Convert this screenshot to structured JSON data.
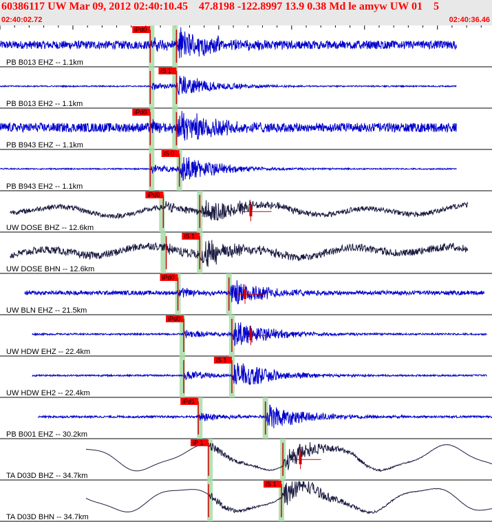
{
  "header": {
    "title": "60386117 UW Mar 09, 2012 02:40:10.45    47.8198 -122.8997 13.9 0.38 Md le amyw UW 01    5",
    "time_start": "02:40:02.72",
    "time_end": "02:40:36.46"
  },
  "colors": {
    "header_bg": "#e8e8e8",
    "title_text": "#ff0000",
    "trace_blue": "#0000cc",
    "trace_dark": "#1a1a40",
    "pick_box": "#ff0000",
    "window_band": "#a8dca8",
    "minute_tick": "#000000"
  },
  "chart_data": {
    "type": "line",
    "x_range_seconds": [
      0,
      33.74
    ],
    "traces": [
      {
        "label": "PB B013 EHZ -- 1.1km",
        "color": "#0000cc",
        "style": "hf",
        "start": 0.0,
        "end": 31.3,
        "p": 10.3,
        "s": 12.1,
        "pick_text": "iPd0",
        "pick_at": 10.3,
        "amp": 0.42,
        "noise": 0.2,
        "cursor": null,
        "bands": [
          10.4,
          12.0
        ]
      },
      {
        "label": "PB B013 EH2 -- 1.1km",
        "color": "#0000cc",
        "style": "hf",
        "start": 0.0,
        "end": 31.3,
        "p": 10.3,
        "s": 12.1,
        "pick_text": "iS 1",
        "pick_at": 12.1,
        "amp": 0.32,
        "noise": 0.03,
        "cursor": null,
        "bands": [
          10.4,
          12.0
        ]
      },
      {
        "label": "PB B943 EHZ -- 1.1km",
        "color": "#0000cc",
        "style": "hf",
        "start": 0.0,
        "end": 31.3,
        "p": 10.3,
        "s": 12.1,
        "pick_text": "iPd0",
        "pick_at": 10.3,
        "amp": 0.45,
        "noise": 0.22,
        "cursor": null,
        "bands": [
          10.4,
          12.0
        ]
      },
      {
        "label": "PB B943 EH2 -- 1.1km",
        "color": "#0000cc",
        "style": "hf",
        "start": 0.0,
        "end": 31.3,
        "p": 10.3,
        "s": 12.3,
        "pick_text": "iS 0",
        "pick_at": 12.3,
        "amp": 0.4,
        "noise": 0.03,
        "cursor": null,
        "bands": [
          10.4,
          12.3
        ]
      },
      {
        "label": "UW DOSE BHZ -- 12.6km",
        "color": "#1a1a40",
        "style": "lf",
        "start": 0.7,
        "end": 32.1,
        "p": 11.2,
        "s": 13.7,
        "pick_text": "iPd0",
        "pick_at": 11.2,
        "amp": 0.4,
        "noise": 0.12,
        "cursor": 17.2,
        "bands": [
          11.1,
          13.7
        ]
      },
      {
        "label": "UW DOSE BHN -- 12.6km",
        "color": "#1a1a40",
        "style": "lf",
        "start": 0.7,
        "end": 32.1,
        "p": 11.4,
        "s": 13.7,
        "pick_text": "iS 1",
        "pick_at": 13.7,
        "amp": 0.38,
        "noise": 0.18,
        "cursor": null,
        "bands": [
          11.2,
          13.7
        ]
      },
      {
        "label": "UW BLN EHZ -- 21.5km",
        "color": "#0000cc",
        "style": "hf",
        "start": 1.7,
        "end": 33.2,
        "p": 12.2,
        "s": 15.7,
        "pick_text": "iPd0",
        "pick_at": 12.2,
        "amp": 0.36,
        "noise": 0.1,
        "cursor": 16.8,
        "bands": [
          12.2,
          15.7
        ]
      },
      {
        "label": "UW HDW EHZ -- 22.4km",
        "color": "#0000cc",
        "style": "hf",
        "start": 2.2,
        "end": 33.4,
        "p": 12.6,
        "s": 15.9,
        "pick_text": "iPd0",
        "pick_at": 12.6,
        "amp": 0.4,
        "noise": 0.04,
        "cursor": 17.2,
        "bands": [
          12.5,
          15.9
        ]
      },
      {
        "label": "UW HDW EH2 -- 22.4km",
        "color": "#0000cc",
        "style": "hf",
        "start": 2.2,
        "end": 33.4,
        "p": 12.6,
        "s": 15.9,
        "pick_text": "iS 1",
        "pick_at": 15.9,
        "amp": 0.42,
        "noise": 0.04,
        "cursor": null,
        "bands": [
          12.5,
          15.9
        ]
      },
      {
        "label": "PB B001 EHZ -- 30.2km",
        "color": "#0000cc",
        "style": "hf",
        "start": 2.6,
        "end": 34.4,
        "p": 13.6,
        "s": 18.2,
        "pick_text": "iPd1",
        "pick_at": 13.6,
        "amp": 0.4,
        "noise": 0.05,
        "cursor": null,
        "bands": [
          13.7,
          18.2
        ]
      },
      {
        "label": "TA D03D BHZ -- 34.7km",
        "color": "#1a1a40",
        "style": "lf",
        "start": 5.9,
        "end": 35.0,
        "p": 14.3,
        "s": 19.4,
        "pick_text": "iP 1",
        "pick_at": 14.3,
        "amp": 0.38,
        "noise": 0.0,
        "cursor": 20.6,
        "bands": [
          14.4,
          19.4
        ]
      },
      {
        "label": "TA D03D BHN -- 34.7km",
        "color": "#1a1a40",
        "style": "lf",
        "start": 5.9,
        "end": 35.0,
        "p": 14.3,
        "s": 19.3,
        "pick_text": "iS 1",
        "pick_at": 19.3,
        "amp": 0.38,
        "noise": 0.0,
        "cursor": null,
        "bands": [
          14.4,
          19.3
        ]
      }
    ]
  }
}
